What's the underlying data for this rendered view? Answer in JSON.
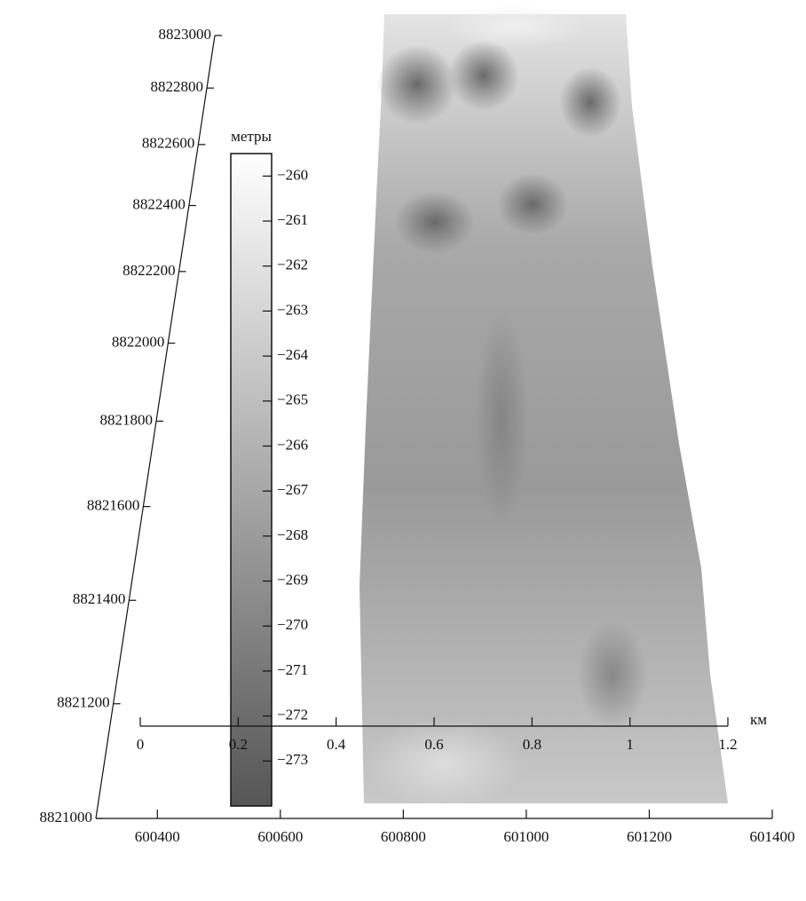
{
  "chart_data": {
    "type": "surface",
    "ylim": [
      8821000,
      8823000
    ],
    "yticks": [
      8821000,
      8821200,
      8821400,
      8821600,
      8821800,
      8822000,
      8822200,
      8822400,
      8822600,
      8822800,
      8823000
    ],
    "xlim": [
      600300,
      601400
    ],
    "xticks": [
      600400,
      600600,
      600800,
      601000,
      601200,
      601400
    ],
    "colorbar": {
      "label": "метры",
      "lim": [
        -274,
        -259.5
      ],
      "ticks": [
        {
          "value": -260,
          "label": "−260"
        },
        {
          "value": -261,
          "label": "−261"
        },
        {
          "value": -262,
          "label": "−262"
        },
        {
          "value": -263,
          "label": "−263"
        },
        {
          "value": -264,
          "label": "−264"
        },
        {
          "value": -265,
          "label": "−265"
        },
        {
          "value": -266,
          "label": "−266"
        },
        {
          "value": -267,
          "label": "−267"
        },
        {
          "value": -268,
          "label": "−268"
        },
        {
          "value": -269,
          "label": "−269"
        },
        {
          "value": -270,
          "label": "−270"
        },
        {
          "value": -271,
          "label": "−271"
        },
        {
          "value": -272,
          "label": "−272"
        },
        {
          "value": -273,
          "label": "−273"
        }
      ]
    },
    "scalebar": {
      "unit": "км",
      "lim": [
        0,
        1.2
      ],
      "ticks": [
        0,
        0.2,
        0.4,
        0.6,
        0.8,
        1,
        1.2
      ]
    }
  }
}
